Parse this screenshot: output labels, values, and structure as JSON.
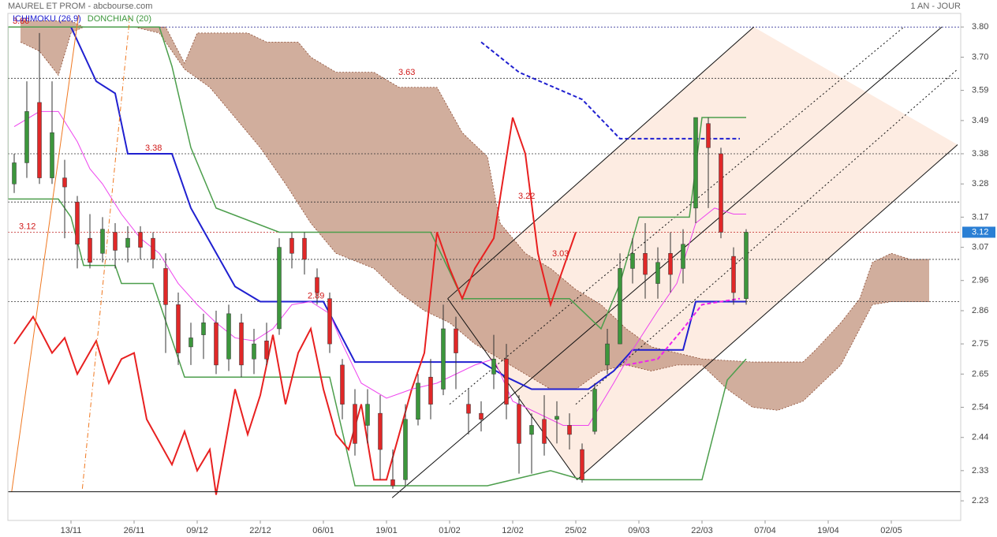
{
  "chart_data": {
    "type": "candlestick",
    "title": "MAUREL ET PROM - abcbourse.com",
    "period": "1 AN - JOUR",
    "xlim": [
      0,
      151
    ],
    "xticks": [
      {
        "value": 10,
        "label": "13/11"
      },
      {
        "value": 20,
        "label": "26/11"
      },
      {
        "value": 30,
        "label": "09/12"
      },
      {
        "value": 40,
        "label": "22/12"
      },
      {
        "value": 50,
        "label": "06/01"
      },
      {
        "value": 60,
        "label": "19/01"
      },
      {
        "value": 70,
        "label": "01/02"
      },
      {
        "value": 80,
        "label": "12/02"
      },
      {
        "value": 90,
        "label": "25/02"
      },
      {
        "value": 100,
        "label": "09/03"
      },
      {
        "value": 110,
        "label": "22/03"
      },
      {
        "value": 120,
        "label": "07/04"
      },
      {
        "value": 130,
        "label": "19/04"
      },
      {
        "value": 140,
        "label": "02/05"
      }
    ],
    "ylim": [
      2.165,
      3.845
    ],
    "yticks": [
      {
        "value": 3.8,
        "label": "3.80"
      },
      {
        "value": 3.7,
        "label": "3.70"
      },
      3.59,
      3.49,
      3.38,
      3.28,
      3.17,
      3.07,
      2.96,
      2.86,
      2.75,
      2.65,
      2.54,
      2.44,
      2.33,
      2.23
    ],
    "up_color": "#3c963c",
    "down_color": "#e02828",
    "candles": {
      "x": [
        1,
        3,
        5,
        7,
        9,
        11,
        13,
        15,
        17,
        19,
        21,
        23,
        25,
        27,
        29,
        31,
        33,
        35,
        37,
        39,
        41,
        43,
        45,
        47,
        49,
        51,
        53,
        55,
        57,
        59,
        61,
        63,
        65,
        67,
        69,
        71,
        73,
        75,
        77,
        79,
        81,
        83,
        85,
        87,
        89,
        91,
        93,
        95,
        97,
        99,
        101,
        103,
        105,
        107,
        109,
        111,
        113,
        115,
        117
      ],
      "open": [
        3.28,
        3.35,
        3.55,
        3.3,
        3.3,
        3.22,
        3.1,
        3.05,
        3.12,
        3.07,
        3.12,
        3.1,
        3.0,
        2.88,
        2.74,
        2.78,
        2.82,
        2.7,
        2.82,
        2.7,
        2.76,
        2.8,
        3.1,
        3.1,
        2.97,
        2.9,
        2.68,
        2.55,
        2.48,
        2.52,
        2.3,
        2.3,
        2.5,
        2.64,
        2.6,
        2.8,
        2.55,
        2.52,
        2.65,
        2.7,
        2.55,
        2.45,
        2.5,
        2.5,
        2.48,
        2.4,
        2.46,
        2.68,
        2.75,
        3.0,
        3.05,
        2.95,
        3.05,
        3.0,
        3.2,
        3.48,
        3.38,
        3.04,
        2.9
      ],
      "high": [
        3.38,
        3.62,
        3.78,
        3.62,
        3.36,
        3.24,
        3.18,
        3.17,
        3.15,
        3.14,
        3.14,
        3.12,
        3.05,
        2.92,
        2.82,
        2.85,
        2.86,
        2.88,
        2.85,
        2.8,
        2.82,
        3.1,
        3.12,
        3.12,
        3.0,
        2.92,
        2.7,
        2.6,
        2.6,
        2.58,
        2.4,
        2.55,
        2.65,
        2.7,
        2.88,
        2.84,
        2.6,
        2.56,
        2.78,
        2.75,
        2.58,
        2.52,
        2.58,
        2.56,
        2.52,
        2.42,
        2.62,
        2.8,
        3.05,
        3.1,
        3.15,
        3.07,
        3.12,
        3.13,
        3.5,
        3.5,
        3.4,
        3.07,
        3.13
      ],
      "low": [
        3.25,
        3.3,
        3.28,
        3.28,
        3.1,
        3.0,
        3.0,
        3.02,
        3.0,
        3.02,
        3.03,
        3.0,
        2.72,
        2.68,
        2.68,
        2.7,
        2.65,
        2.66,
        2.64,
        2.65,
        2.68,
        2.78,
        3.0,
        2.98,
        2.88,
        2.72,
        2.5,
        2.38,
        2.42,
        2.3,
        2.27,
        2.28,
        2.48,
        2.5,
        2.58,
        2.6,
        2.45,
        2.46,
        2.6,
        2.5,
        2.32,
        2.32,
        2.38,
        2.42,
        2.4,
        2.29,
        2.45,
        2.65,
        2.75,
        2.95,
        2.9,
        2.9,
        2.92,
        2.95,
        3.15,
        3.2,
        3.1,
        2.88,
        2.88
      ],
      "close": [
        3.35,
        3.52,
        3.3,
        3.45,
        3.27,
        3.08,
        3.02,
        3.13,
        3.06,
        3.1,
        3.07,
        3.03,
        2.88,
        2.72,
        2.77,
        2.82,
        2.68,
        2.85,
        2.68,
        2.75,
        2.7,
        3.07,
        3.05,
        3.03,
        2.92,
        2.75,
        2.55,
        2.42,
        2.55,
        2.4,
        2.28,
        2.5,
        2.62,
        2.55,
        2.8,
        2.72,
        2.52,
        2.5,
        2.7,
        2.55,
        2.42,
        2.48,
        2.42,
        2.51,
        2.45,
        2.3,
        2.6,
        2.75,
        3.0,
        3.05,
        2.98,
        3.02,
        2.98,
        3.08,
        3.5,
        3.4,
        3.12,
        2.92,
        3.12
      ]
    },
    "indicators": [
      {
        "name": "ICHIMOKU (26,9)",
        "color": "#2020d0"
      },
      {
        "name": "DONCHIAN (20)",
        "color": "#3c963c"
      }
    ],
    "cloud": {
      "fill": "#c9a08c",
      "stroke": "#8a4a32",
      "upper": {
        "x": [
          2,
          10,
          12,
          25,
          28,
          30,
          38,
          41,
          46,
          48,
          52,
          58,
          62,
          68,
          72,
          76,
          78,
          82,
          86,
          90,
          94,
          98,
          102,
          110,
          118,
          126,
          128,
          132,
          135,
          137,
          140,
          143,
          146
        ],
        "values": [
          3.82,
          3.82,
          3.8,
          3.8,
          3.68,
          3.78,
          3.78,
          3.75,
          3.75,
          3.7,
          3.65,
          3.65,
          3.6,
          3.6,
          3.45,
          3.37,
          3.15,
          3.05,
          3.0,
          2.93,
          2.88,
          2.8,
          2.74,
          2.7,
          2.69,
          2.69,
          2.73,
          2.82,
          2.9,
          3.02,
          3.05,
          3.03,
          3.03
        ]
      },
      "lower": {
        "x": [
          2,
          5,
          8,
          10,
          12,
          20,
          24,
          28,
          32,
          36,
          40,
          44,
          48,
          52,
          58,
          62,
          66,
          70,
          74,
          78,
          82,
          86,
          90,
          94,
          98,
          102,
          106,
          110,
          114,
          118,
          122,
          126,
          128,
          132,
          135,
          137,
          140,
          146
        ],
        "values": [
          3.75,
          3.72,
          3.64,
          3.78,
          3.8,
          3.8,
          3.78,
          3.66,
          3.6,
          3.5,
          3.4,
          3.28,
          3.15,
          3.05,
          3.0,
          2.92,
          2.86,
          2.82,
          2.75,
          2.7,
          2.65,
          2.6,
          2.6,
          2.66,
          2.68,
          2.66,
          2.68,
          2.68,
          2.6,
          2.54,
          2.53,
          2.56,
          2.6,
          2.68,
          2.8,
          2.88,
          2.89,
          2.89
        ]
      }
    },
    "channel": {
      "fill": "#fdece2",
      "color": "#111111",
      "top": {
        "x": [
          69.7,
          118.2
        ],
        "values": [
          2.9,
          3.8
        ]
      },
      "bottom": {
        "x": [
          90.2,
          150.5
        ],
        "values": [
          2.3,
          3.41
        ]
      },
      "lines": [
        {
          "dash": "solid",
          "x": [
            60.9,
            148
          ],
          "values": [
            2.24,
            3.8
          ]
        },
        {
          "dash": "dotted",
          "x": [
            70,
            142
          ],
          "values": [
            2.55,
            3.8
          ]
        },
        {
          "dash": "dotted",
          "x": [
            90,
            150.5
          ],
          "values": [
            2.55,
            3.66
          ]
        },
        {
          "dash": "solid",
          "x": [
            69.7,
            90.2
          ],
          "values": [
            2.9,
            2.3
          ]
        }
      ]
    },
    "lines": [
      {
        "color": "#2020d0",
        "width": 2,
        "dash": "solid",
        "x": [
          10,
          14,
          17,
          19,
          26,
          29,
          36,
          40,
          50,
          55,
          75,
          79,
          83,
          92,
          96,
          99,
          107,
          109,
          117
        ],
        "values": [
          3.8,
          3.62,
          3.58,
          3.38,
          3.38,
          3.2,
          2.94,
          2.89,
          2.89,
          2.69,
          2.69,
          2.64,
          2.6,
          2.6,
          2.66,
          2.73,
          2.73,
          2.89,
          2.89
        ]
      },
      {
        "color": "#2020d0",
        "width": 2,
        "dash": "dashed",
        "x": [
          75,
          81,
          91,
          97,
          116
        ],
        "values": [
          3.75,
          3.65,
          3.56,
          3.43,
          3.43
        ]
      },
      {
        "color": "#4c9e4c",
        "width": 1.5,
        "dash": "solid",
        "x": [
          0,
          8,
          10,
          12,
          17,
          18,
          23,
          28,
          51,
          55,
          76,
          86,
          91,
          110,
          114,
          117
        ],
        "values": [
          3.23,
          3.23,
          3.17,
          3.01,
          3.01,
          2.95,
          2.95,
          2.64,
          2.64,
          2.28,
          2.28,
          2.33,
          2.3,
          2.3,
          2.63,
          2.7
        ]
      },
      {
        "color": "#4c9e4c",
        "width": 1.5,
        "dash": "solid",
        "x": [
          0,
          0,
          12,
          24,
          26,
          29,
          33,
          43,
          67,
          70,
          72,
          89,
          94,
          97,
          100,
          108,
          110,
          117
        ],
        "values": [
          3.23,
          3.8,
          3.8,
          3.8,
          3.67,
          3.4,
          3.2,
          3.12,
          3.12,
          2.99,
          2.9,
          2.9,
          2.8,
          2.95,
          3.17,
          3.17,
          3.5,
          3.5
        ]
      },
      {
        "color": "#e82020",
        "width": 2,
        "dash": "solid",
        "x": [
          1,
          4,
          7,
          9,
          11,
          14,
          16,
          18,
          20,
          22,
          26,
          28,
          30,
          32,
          33,
          36,
          38,
          40,
          42,
          44,
          46,
          48,
          50,
          52,
          54,
          56,
          58,
          60,
          62,
          64,
          66,
          68,
          70,
          72,
          74,
          77,
          80,
          82,
          84,
          86,
          88,
          90
        ],
        "values": [
          2.75,
          2.84,
          2.72,
          2.77,
          2.65,
          2.76,
          2.62,
          2.7,
          2.72,
          2.5,
          2.35,
          2.46,
          2.33,
          2.4,
          2.25,
          2.6,
          2.45,
          2.58,
          2.78,
          2.55,
          2.72,
          2.8,
          2.6,
          2.45,
          2.4,
          2.55,
          2.3,
          2.3,
          2.45,
          2.6,
          2.72,
          3.12,
          3.0,
          2.9,
          3.0,
          3.1,
          3.5,
          3.38,
          3.05,
          2.88,
          3.0,
          3.12
        ]
      },
      {
        "color": "#ee44ee",
        "width": 1,
        "dash": "solid",
        "x": [
          1,
          5,
          8,
          11,
          13,
          15,
          18,
          21,
          24,
          27,
          30,
          33,
          36,
          39,
          42,
          45,
          48,
          51,
          53,
          56,
          60,
          64,
          68,
          71,
          74,
          77,
          80,
          84,
          88,
          92,
          96,
          99,
          103,
          106,
          109,
          112,
          115,
          117
        ],
        "values": [
          3.47,
          3.52,
          3.52,
          3.42,
          3.33,
          3.28,
          3.18,
          3.1,
          3.05,
          2.95,
          2.88,
          2.82,
          2.77,
          2.76,
          2.8,
          2.88,
          2.89,
          2.85,
          2.75,
          2.62,
          2.57,
          2.6,
          2.62,
          2.65,
          2.68,
          2.7,
          2.56,
          2.52,
          2.48,
          2.48,
          2.62,
          2.73,
          2.86,
          2.95,
          3.15,
          3.2,
          3.18,
          3.18
        ]
      },
      {
        "color": "#ee22ee",
        "width": 2,
        "dash": "dashed",
        "x": [
          98,
          103,
          107,
          110,
          116
        ],
        "values": [
          2.68,
          2.7,
          2.8,
          2.88,
          2.9
        ]
      },
      {
        "color": "#f07820",
        "width": 1,
        "dash": "solid",
        "x": [
          0.6,
          11.2
        ],
        "values": [
          2.26,
          3.84
        ]
      },
      {
        "color": "#f07820",
        "width": 1,
        "dash": "dashdot",
        "x": [
          11.8,
          19.3
        ],
        "values": [
          2.27,
          3.83
        ]
      },
      {
        "color": "#111111",
        "width": 1,
        "dash": "solid",
        "x": [
          0,
          151
        ],
        "values": [
          2.26,
          2.26
        ]
      }
    ],
    "levels": [
      {
        "value": 3.8,
        "label": "3.80",
        "color": "#1a1a8a"
      },
      {
        "value": 3.63,
        "color": "#333333"
      },
      {
        "value": 3.38,
        "color": "#333333"
      },
      {
        "value": 3.22,
        "color": "#333333"
      },
      {
        "value": 3.12,
        "color": "#c02020"
      },
      {
        "value": 3.03,
        "color": "#333333"
      },
      {
        "value": 2.89,
        "color": "#333333"
      }
    ],
    "last_price": 3.12,
    "last_price_color": "#2a7fd4"
  }
}
